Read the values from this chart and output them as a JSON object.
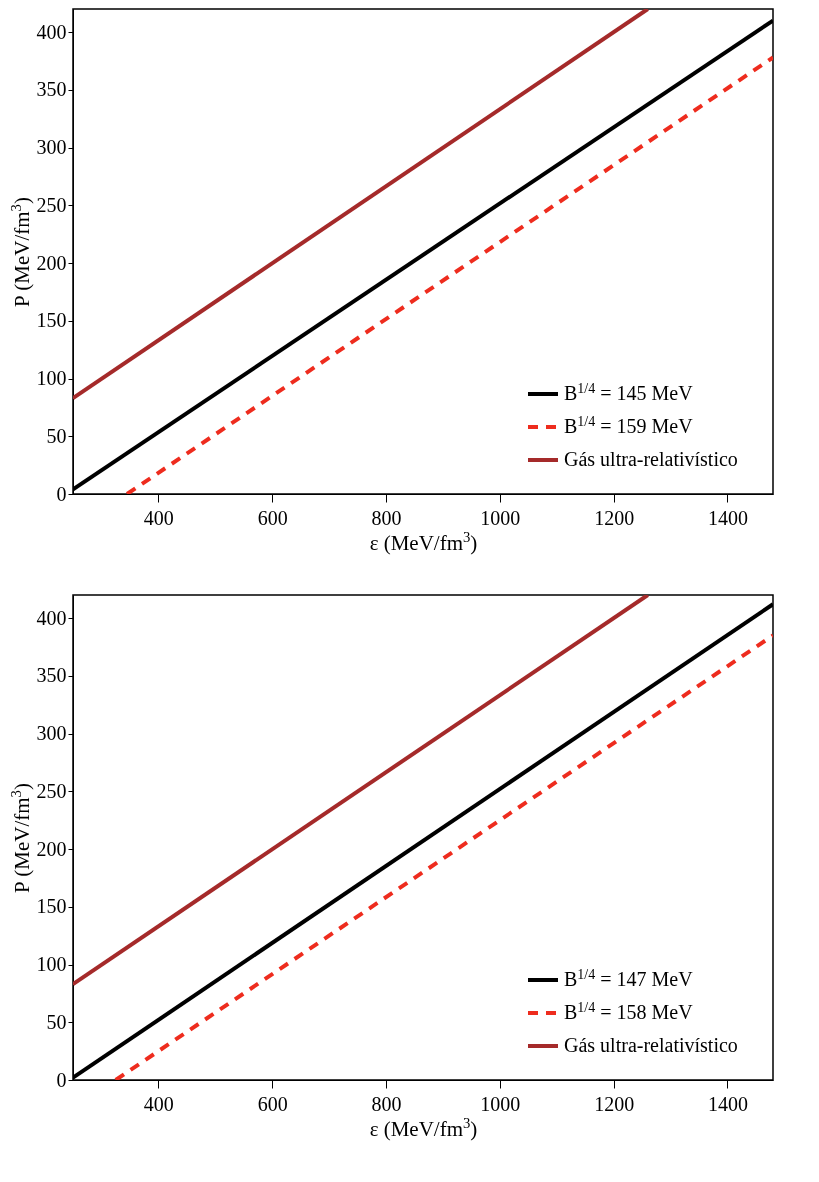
{
  "chart_data": [
    {
      "type": "line",
      "xlabel": "ε (MeV/fm$^{3}$)",
      "ylabel": "P (MeV/fm$^{3}$)",
      "xlim": [
        250,
        1480
      ],
      "ylim": [
        0,
        420
      ],
      "xticks": [
        400,
        600,
        800,
        1000,
        1200,
        1400
      ],
      "yticks": [
        0,
        50,
        100,
        150,
        200,
        250,
        300,
        350,
        400
      ],
      "legend": "bottom right",
      "grid": false,
      "marker": "none",
      "series": [
        {
          "name": "B$^{1/4}$ = 145 MeV",
          "color": "#000000",
          "line_style": "solid",
          "x": [
            250,
            1480
          ],
          "values": [
            4,
            410
          ]
        },
        {
          "name": "B$^{1/4}$ = 159 MeV",
          "color": "#ee2c1e",
          "line_style": "dashed",
          "x": [
            345,
            1480
          ],
          "values": [
            0,
            378
          ]
        },
        {
          "name": "Gás ultra-relativístico",
          "color": "#a52a2a",
          "line_style": "solid",
          "x": [
            250,
            1260
          ],
          "values": [
            83,
            420
          ]
        }
      ]
    },
    {
      "type": "line",
      "xlabel": "ε (MeV/fm$^{3}$)",
      "ylabel": "P (MeV/fm$^{3}$)",
      "xlim": [
        250,
        1480
      ],
      "ylim": [
        0,
        420
      ],
      "xticks": [
        400,
        600,
        800,
        1000,
        1200,
        1400
      ],
      "yticks": [
        0,
        50,
        100,
        150,
        200,
        250,
        300,
        350,
        400
      ],
      "legend": "bottom right",
      "grid": false,
      "marker": "none",
      "series": [
        {
          "name": "B$^{1/4}$ = 147 MeV",
          "color": "#000000",
          "line_style": "solid",
          "x": [
            250,
            1480
          ],
          "values": [
            2,
            412
          ]
        },
        {
          "name": "B$^{1/4}$ = 158 MeV",
          "color": "#ee2c1e",
          "line_style": "dashed",
          "x": [
            325,
            1480
          ],
          "values": [
            0,
            385
          ]
        },
        {
          "name": "Gás ultra-relativístico",
          "color": "#a52a2a",
          "line_style": "solid",
          "x": [
            250,
            1260
          ],
          "values": [
            83,
            420
          ]
        }
      ]
    }
  ]
}
